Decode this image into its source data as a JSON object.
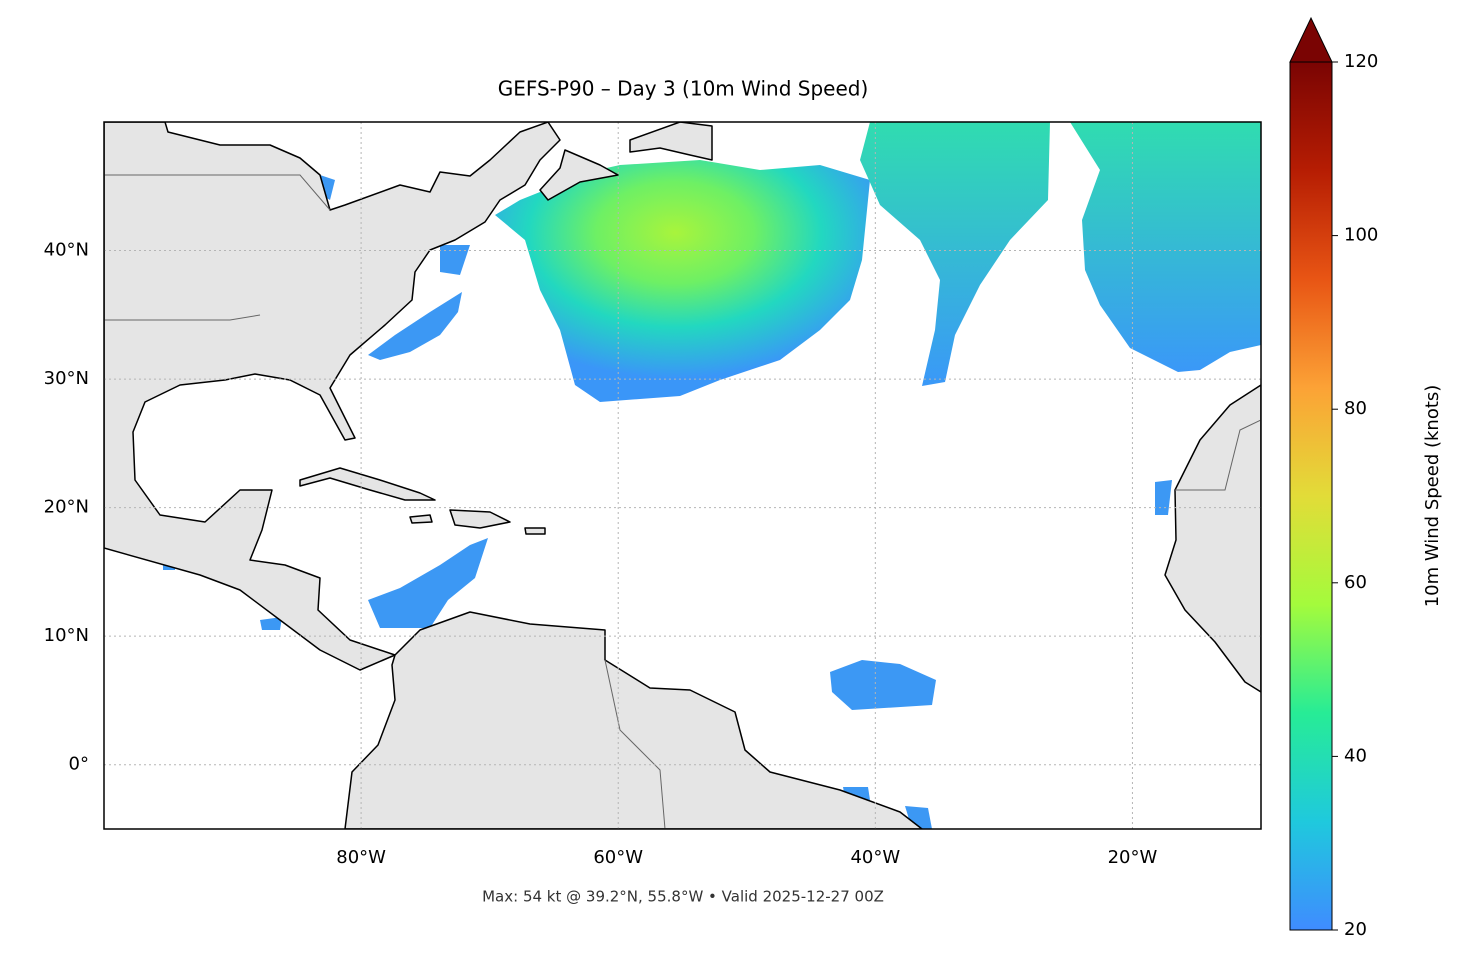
{
  "title": "GEFS-P90 – Day 3 (10m Wind Speed)",
  "footer": "Max: 54 kt @ 39.2°N, 55.8°W • Valid 2025-12-27 00Z",
  "map": {
    "lon_lim": [
      -100,
      -10
    ],
    "lat_lim": [
      -5,
      50
    ],
    "lon_ticks": [
      {
        "value": -80,
        "label": "80°W"
      },
      {
        "value": -60,
        "label": "60°W"
      },
      {
        "value": -40,
        "label": "40°W"
      },
      {
        "value": -20,
        "label": "20°W"
      }
    ],
    "lat_ticks": [
      {
        "value": 0,
        "label": "0°"
      },
      {
        "value": 10,
        "label": "10°N"
      },
      {
        "value": 20,
        "label": "20°N"
      },
      {
        "value": 30,
        "label": "30°N"
      },
      {
        "value": 40,
        "label": "40°N"
      }
    ],
    "grid": true
  },
  "colorbar": {
    "label": "10m Wind Speed (knots)",
    "lim": [
      20,
      120
    ],
    "ticks": [
      20,
      40,
      60,
      80,
      100,
      120
    ],
    "colors": [
      "#3f8cff",
      "#1fc9dd",
      "#27ec96",
      "#a4fb3c",
      "#e2dc38",
      "#fca236",
      "#e85514",
      "#b61d03",
      "#7a0403"
    ]
  }
}
